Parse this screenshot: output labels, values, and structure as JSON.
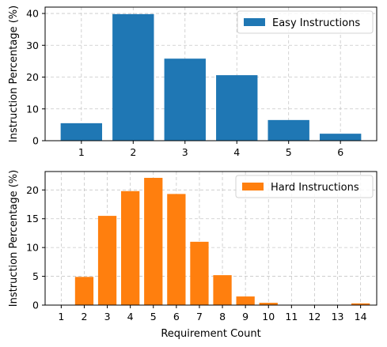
{
  "chart_data": [
    {
      "type": "bar",
      "categories": [
        "1",
        "2",
        "3",
        "4",
        "5",
        "6"
      ],
      "series": [
        {
          "name": "Easy Instructions",
          "values": [
            5.5,
            39.8,
            25.8,
            20.6,
            6.5,
            2.2
          ],
          "color": "#1f77b4"
        }
      ],
      "xlabel": "",
      "ylabel": "Instruction Percentage (%)",
      "ylim": [
        0,
        42
      ],
      "yticks": [
        0,
        10,
        20,
        30,
        40
      ],
      "grid": true,
      "legend_position": "top-right"
    },
    {
      "type": "bar",
      "categories": [
        "1",
        "2",
        "3",
        "4",
        "5",
        "6",
        "7",
        "8",
        "9",
        "10",
        "11",
        "12",
        "13",
        "14"
      ],
      "series": [
        {
          "name": "Hard Instructions",
          "values": [
            0,
            4.9,
            15.5,
            19.8,
            22.1,
            19.3,
            11.0,
            5.2,
            1.5,
            0.4,
            0,
            0,
            0,
            0.3
          ],
          "color": "#ff7f0e"
        }
      ],
      "xlabel": "Requirement Count",
      "ylabel": "Instruction Percentage (%)",
      "ylim": [
        0,
        23.2
      ],
      "yticks": [
        0,
        5,
        10,
        15,
        20
      ],
      "grid": true,
      "legend_position": "top-right"
    }
  ]
}
